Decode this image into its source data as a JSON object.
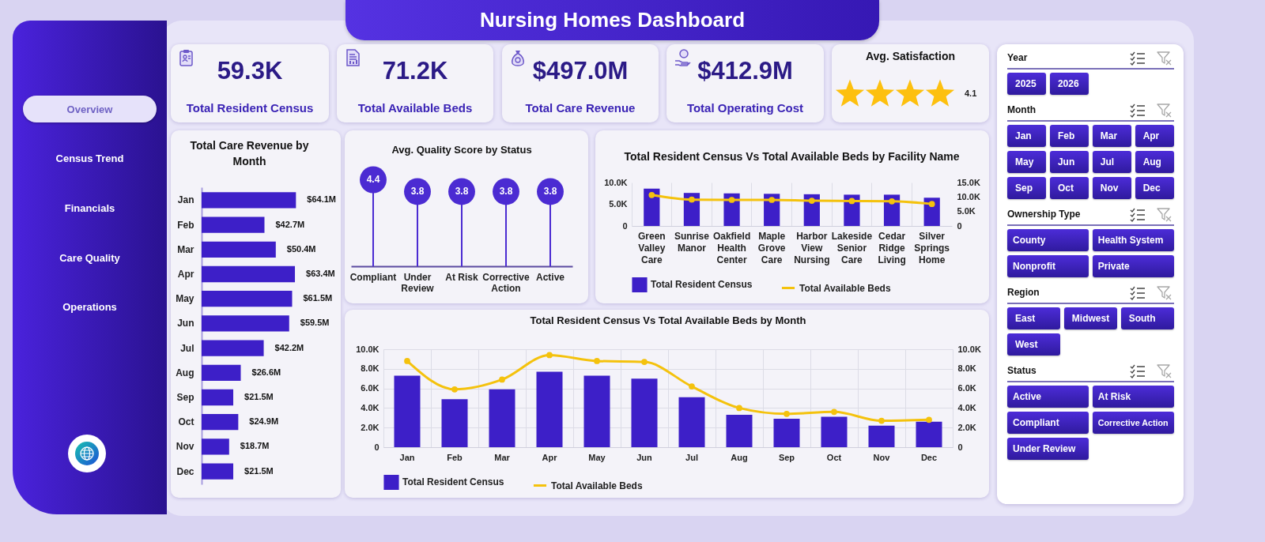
{
  "chart_data": [
    {
      "type": "other",
      "title": "Nursing Homes Dashboard"
    },
    {
      "type": "other",
      "annotations": [
        "Overview",
        "Census Trend",
        "Financials",
        "Care Quality",
        "Operations"
      ]
    },
    {
      "type": "other",
      "title": "Total Resident Census",
      "annotations": [
        "59.3K"
      ]
    },
    {
      "type": "other",
      "title": "Total Available Beds",
      "annotations": [
        "71.2K"
      ]
    },
    {
      "type": "other",
      "title": "Total Care Revenue",
      "annotations": [
        "$497.0M"
      ]
    },
    {
      "type": "other",
      "title": "Total Operating Cost",
      "annotations": [
        "$412.9M"
      ]
    },
    {
      "type": "other",
      "title": "Avg. Satisfaction",
      "values": [
        4.1
      ],
      "data_labels": true
    },
    {
      "type": "bar",
      "orientation": "horizontal",
      "title": "Total Care Revenue by Month",
      "categories": [
        "Jan",
        "Feb",
        "Mar",
        "Apr",
        "May",
        "Jun",
        "Jul",
        "Aug",
        "Sep",
        "Oct",
        "Nov",
        "Dec"
      ],
      "values": [
        64.1,
        42.7,
        50.4,
        63.4,
        61.5,
        59.5,
        42.2,
        26.6,
        21.5,
        24.9,
        18.7,
        21.5
      ],
      "value_labels": [
        "$64.1M",
        "$42.7M",
        "$50.4M",
        "$63.4M",
        "$61.5M",
        "$59.5M",
        "$42.2M",
        "$26.6M",
        "$21.5M",
        "$24.9M",
        "$18.7M",
        "$21.5M"
      ],
      "color": "#3d1fc8",
      "tick_labels": "y"
    },
    {
      "type": "lollipop",
      "title": "Avg. Quality Score by Status",
      "categories": [
        "Compliant",
        "Under Review",
        "At Risk",
        "Corrective Action",
        "Active"
      ],
      "values": [
        4.4,
        3.8,
        3.8,
        3.8,
        3.8
      ],
      "color": "#4b2bd2",
      "data_labels": true,
      "tick_labels": "x"
    },
    {
      "type": "bar",
      "title": "Total Resident Census Vs Total Available Beds by Facility Name",
      "categories": [
        "Green Valley Care",
        "Sunrise Manor",
        "Oakfield Health Center",
        "Maple Grove Care",
        "Harbor View Nursing",
        "Lakeside Senior Care",
        "Cedar Ridge Living",
        "Silver Springs Home"
      ],
      "series": [
        {
          "name": "Total Resident Census",
          "color": "#3d1fc8",
          "values": [
            8600,
            7600,
            7500,
            7400,
            7300,
            7200,
            7200,
            6500
          ]
        },
        {
          "name": "Total Available Beds",
          "type": "line",
          "axis": "y2",
          "color": "#f4c20d",
          "values": [
            10700,
            9100,
            9000,
            9000,
            8700,
            8600,
            8500,
            7600
          ]
        }
      ],
      "ylim": [
        0,
        10000
      ],
      "yticks": [
        0,
        {
          "value": 5000,
          "label": "5.0K"
        },
        {
          "value": 10000,
          "label": "10.0K"
        }
      ],
      "y2lim": [
        0,
        15000
      ],
      "y2ticks": [
        0,
        {
          "value": 5000,
          "label": "5.0K"
        },
        {
          "value": 10000,
          "label": "10.0K"
        },
        {
          "value": 15000,
          "label": "15.0K"
        }
      ],
      "legend": "bottom",
      "marker": "circle",
      "grid": "x"
    },
    {
      "type": "bar",
      "title": "Total Resident Census Vs Total Available Beds by Month",
      "categories": [
        "Jan",
        "Feb",
        "Mar",
        "Apr",
        "May",
        "Jun",
        "Jul",
        "Aug",
        "Sep",
        "Oct",
        "Nov",
        "Dec"
      ],
      "series": [
        {
          "name": "Total Resident Census",
          "color": "#3d1fc8",
          "values": [
            7300,
            4900,
            5900,
            7700,
            7300,
            7000,
            5100,
            3300,
            2900,
            3100,
            2200,
            2600
          ]
        },
        {
          "name": "Total Available Beds",
          "type": "line",
          "axis": "y2",
          "color": "#f4c20d",
          "values": [
            8800,
            5900,
            6900,
            9400,
            8800,
            8700,
            6200,
            4000,
            3400,
            3600,
            2700,
            2800
          ]
        }
      ],
      "ylim": [
        0,
        10000
      ],
      "yticks": [
        0,
        {
          "value": 2000,
          "label": "2.0K"
        },
        {
          "value": 4000,
          "label": "4.0K"
        },
        {
          "value": 6000,
          "label": "6.0K"
        },
        {
          "value": 8000,
          "label": "8.0K"
        },
        {
          "value": 10000,
          "label": "10.0K"
        }
      ],
      "y2lim": [
        0,
        10000
      ],
      "y2ticks": [
        0,
        {
          "value": 2000,
          "label": "2.0K"
        },
        {
          "value": 4000,
          "label": "4.0K"
        },
        {
          "value": 6000,
          "label": "6.0K"
        },
        {
          "value": 8000,
          "label": "8.0K"
        },
        {
          "value": 10000,
          "label": "10.0K"
        }
      ],
      "legend": "bottom",
      "marker": "circle",
      "grid": true
    },
    {
      "type": "other",
      "title": "Year",
      "annotations": [
        "2025",
        "2026"
      ]
    },
    {
      "type": "other",
      "title": "Month",
      "annotations": [
        "Jan",
        "Feb",
        "Mar",
        "Apr",
        "May",
        "Jun",
        "Jul",
        "Aug",
        "Sep",
        "Oct",
        "Nov",
        "Dec"
      ]
    },
    {
      "type": "other",
      "title": "Ownership Type",
      "annotations": [
        "County",
        "Health System",
        "Nonprofit",
        "Private"
      ]
    },
    {
      "type": "other",
      "title": "Region",
      "annotations": [
        "East",
        "Midwest",
        "South",
        "West"
      ]
    },
    {
      "type": "other",
      "title": "Status",
      "annotations": [
        "Active",
        "At Risk",
        "Compliant",
        "Corrective Action",
        "Under Review"
      ]
    }
  ]
}
